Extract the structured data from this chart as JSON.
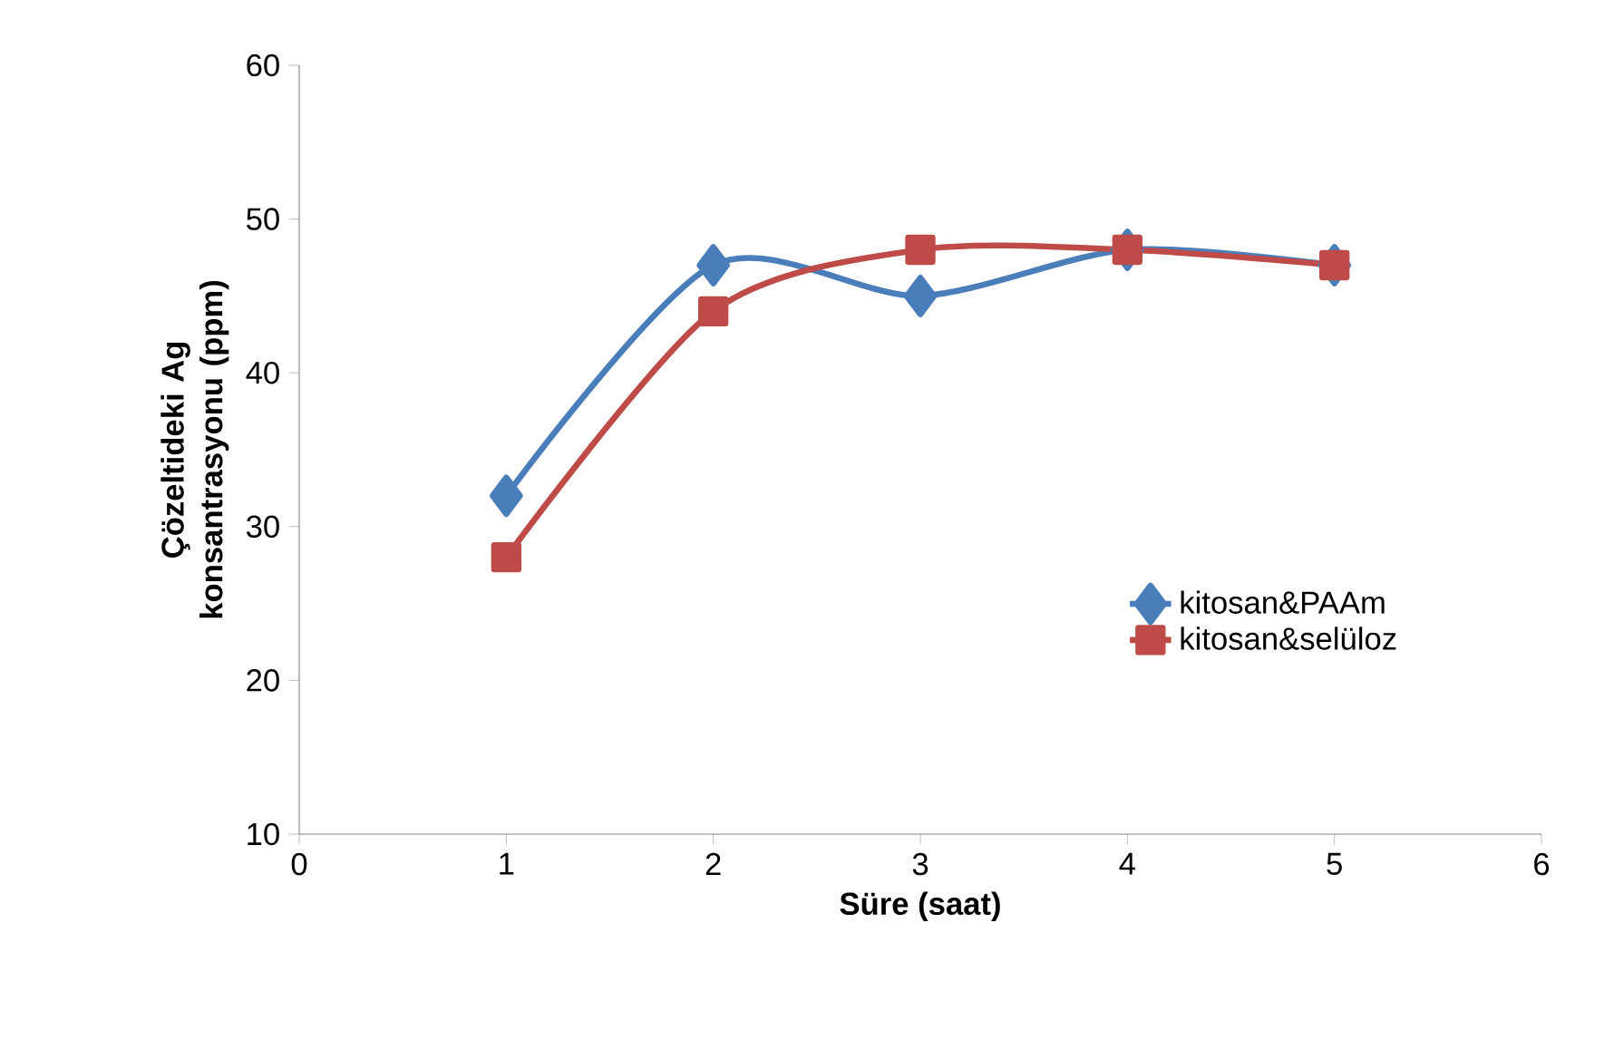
{
  "chart_data": {
    "type": "line",
    "xlabel": "Süre (saat)",
    "ylabel": "Çözeltideki Ag konsantrasyonu (ppm)",
    "xlim": [
      0,
      6
    ],
    "xticks": [
      0,
      1,
      2,
      3,
      4,
      5,
      6
    ],
    "ylim": [
      10,
      60
    ],
    "yticks": [
      10,
      20,
      30,
      40,
      50,
      60
    ],
    "legend": "right",
    "line_style": "solid",
    "series": [
      {
        "name": "kitosan&PAAm",
        "color": "#4a7ebb",
        "marker": "diamond",
        "x": [
          1,
          2,
          3,
          4,
          5
        ],
        "values": [
          32,
          47,
          45,
          48,
          47
        ]
      },
      {
        "name": "kitosan&selüloz",
        "color": "#be4b48",
        "marker": "square",
        "x": [
          1,
          2,
          3,
          4,
          5
        ],
        "values": [
          28,
          44,
          48,
          48,
          47
        ]
      }
    ]
  }
}
